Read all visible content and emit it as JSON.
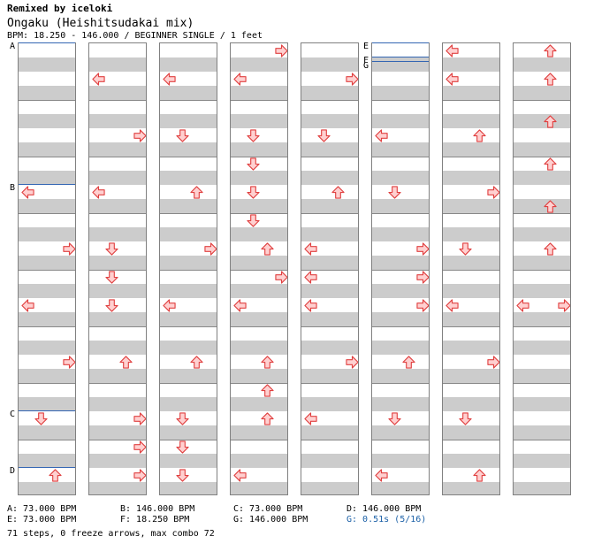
{
  "header": {
    "remix": "Remixed by iceloki",
    "song": "Ongaku (Heishitsudakai mix)",
    "info": "BPM: 18.250 - 146.000 / BEGINNER SINGLE / 1 feet"
  },
  "colors": {
    "arrow_fill": "#ffd0d0",
    "arrow_stroke": "#e04040",
    "band": "#cccccc",
    "segment_line": "#3466b3",
    "stop_text": "#1a5fa6"
  },
  "markers": [
    {
      "label": "A",
      "col": 0,
      "slot": 0
    },
    {
      "label": "B",
      "col": 0,
      "slot": 10
    },
    {
      "label": "C",
      "col": 0,
      "slot": 26
    },
    {
      "label": "D",
      "col": 0,
      "slot": 30
    },
    {
      "label": "E",
      "col": 5,
      "slot": 0
    },
    {
      "label": "F",
      "col": 5,
      "slot": 1
    },
    {
      "label": "G",
      "col": 5,
      "slot": 1.3
    }
  ],
  "columns": [
    {
      "arrows": [
        [
          "L",
          10
        ],
        [
          "R",
          14
        ],
        [
          "L",
          18
        ],
        [
          "R",
          22
        ],
        [
          "D",
          26
        ],
        [
          "U",
          30
        ]
      ]
    },
    {
      "arrows": [
        [
          "L",
          2
        ],
        [
          "R",
          6
        ],
        [
          "L",
          10
        ],
        [
          "D",
          14
        ],
        [
          "D",
          16
        ],
        [
          "D",
          18
        ],
        [
          "U",
          22
        ],
        [
          "R",
          26
        ],
        [
          "R",
          28
        ],
        [
          "R",
          30
        ]
      ]
    },
    {
      "arrows": [
        [
          "L",
          2
        ],
        [
          "D",
          6
        ],
        [
          "U",
          10
        ],
        [
          "R",
          14
        ],
        [
          "L",
          18
        ],
        [
          "U",
          22
        ],
        [
          "D",
          26
        ],
        [
          "D",
          28
        ],
        [
          "D",
          30
        ]
      ]
    },
    {
      "arrows": [
        [
          "R",
          0
        ],
        [
          "L",
          2
        ],
        [
          "D",
          6
        ],
        [
          "D",
          8
        ],
        [
          "D",
          10
        ],
        [
          "D",
          12
        ],
        [
          "U",
          14
        ],
        [
          "R",
          16
        ],
        [
          "L",
          18
        ],
        [
          "U",
          22
        ],
        [
          "U",
          24
        ],
        [
          "U",
          26
        ],
        [
          "L",
          30
        ]
      ]
    },
    {
      "arrows": [
        [
          "R",
          2
        ],
        [
          "D",
          6
        ],
        [
          "U",
          10
        ],
        [
          "L",
          14
        ],
        [
          "L",
          16
        ],
        [
          "L",
          18
        ],
        [
          "R",
          22
        ],
        [
          "L",
          26
        ]
      ]
    },
    {
      "arrows": [
        [
          "L",
          6
        ],
        [
          "D",
          10
        ],
        [
          "R",
          14
        ],
        [
          "R",
          16
        ],
        [
          "R",
          18
        ],
        [
          "U",
          22
        ],
        [
          "D",
          26
        ],
        [
          "L",
          30
        ]
      ]
    },
    {
      "arrows": [
        [
          "L",
          0
        ],
        [
          "L",
          2
        ],
        [
          "U",
          6
        ],
        [
          "R",
          10
        ],
        [
          "D",
          14
        ],
        [
          "L",
          18
        ],
        [
          "R",
          22
        ],
        [
          "D",
          26
        ],
        [
          "U",
          30
        ]
      ]
    },
    {
      "arrows": [
        [
          "U",
          0
        ],
        [
          "U",
          2
        ],
        [
          "U",
          5
        ],
        [
          "U",
          8
        ],
        [
          "U",
          11
        ],
        [
          "U",
          14
        ],
        [
          "L",
          18
        ],
        [
          "R",
          18
        ]
      ]
    }
  ],
  "footer": {
    "a": "A: 73.000 BPM",
    "b": "B: 146.000 BPM",
    "c": "C: 73.000 BPM",
    "d": "D: 146.000 BPM",
    "e": "E: 73.000 BPM",
    "f": "F: 18.250 BPM",
    "g": "G: 146.000 BPM",
    "g2": "G: 0.51s (5/16)",
    "summary": "71 steps, 0 freeze arrows, max combo 72"
  }
}
